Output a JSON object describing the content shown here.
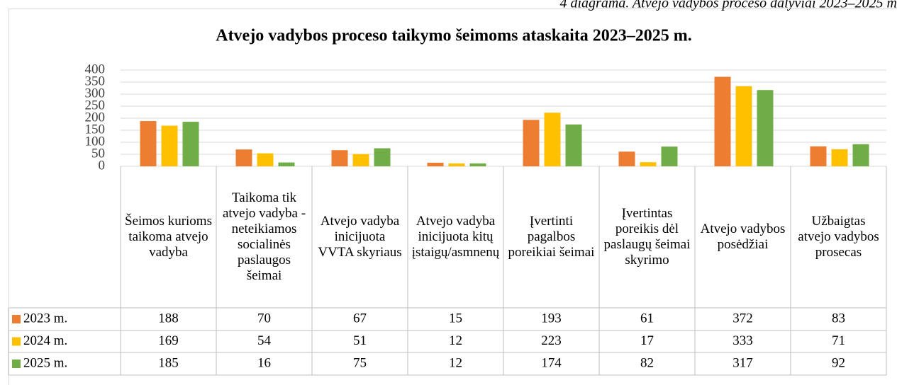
{
  "caption": "4 diagrama. Atvejo vadybos proceso dalyviai 2023–2025 m",
  "chart_data": {
    "type": "bar",
    "title": "Atvejo vadybos proceso taikymo šeimoms ataskaita 2023–2025 m.",
    "categories": [
      "Šeimos kurioms taikoma atvejo vadyba",
      "Taikoma tik atvejo vadyba - neteikiamos socialinės paslaugos šeimai",
      "Atvejo vadyba inicijuota VVTA skyriaus",
      "Atvejo vadyba inicijuota kitų įstaigų/asmnenų",
      "Įvertinti pagalbos poreikiai šeimai",
      "Įvertintas poreikis dėl paslaugų šeimai skyrimo",
      "Atvejo vadybos posėdžiai",
      "Užbaigtas atvejo vadybos prosecas"
    ],
    "series": [
      {
        "name": "2023 m.",
        "color": "#ed7d31",
        "values": [
          188,
          70,
          67,
          15,
          193,
          61,
          372,
          83
        ]
      },
      {
        "name": "2024 m.",
        "color": "#ffc000",
        "values": [
          169,
          54,
          51,
          12,
          223,
          17,
          333,
          71
        ]
      },
      {
        "name": "2025 m.",
        "color": "#70ad47",
        "values": [
          185,
          16,
          75,
          12,
          174,
          82,
          317,
          92
        ]
      }
    ],
    "ylim": [
      0,
      400
    ],
    "yticks": [
      0,
      50,
      100,
      150,
      200,
      250,
      300,
      350,
      400
    ],
    "grid": true
  }
}
